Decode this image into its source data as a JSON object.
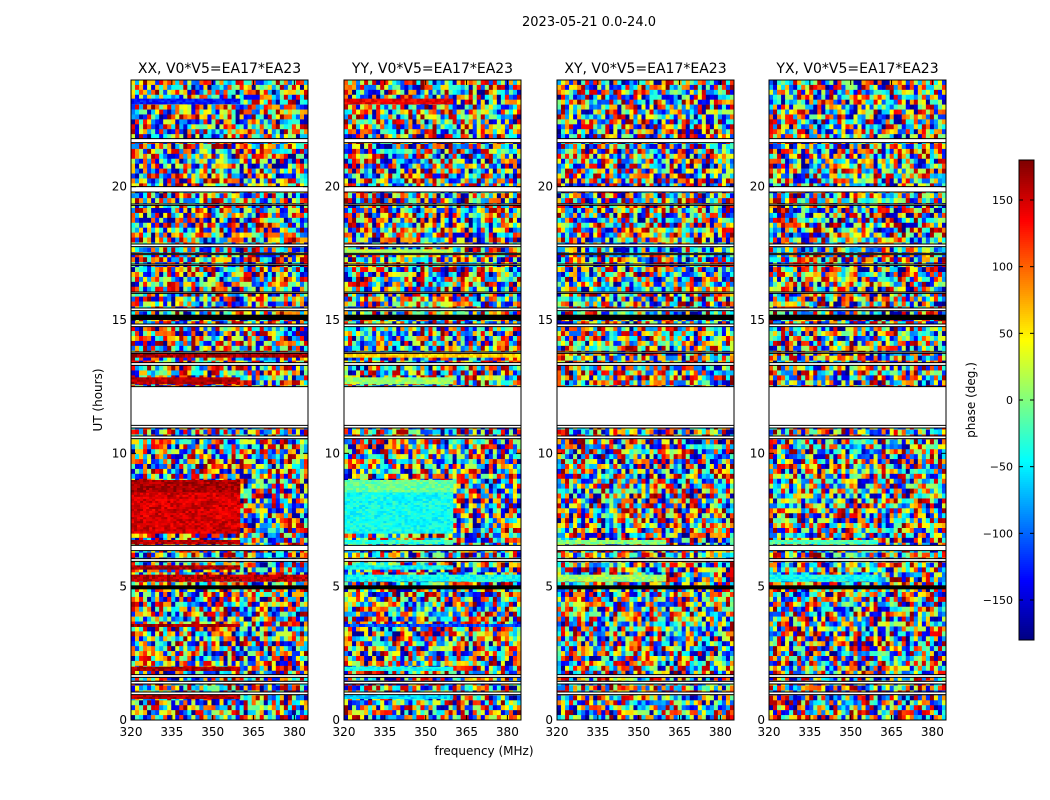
{
  "figure": {
    "suptitle": "2023-05-21 0.0-24.0",
    "xlabel": "frequency (MHz)",
    "ylabel": "UT (hours)"
  },
  "colorbar": {
    "label": "phase (deg.)",
    "range": [
      -180,
      180
    ],
    "ticks": [
      150,
      100,
      50,
      0,
      -50,
      -100,
      -150
    ],
    "tick_labels": [
      "150",
      "100",
      "50",
      "0",
      "−50",
      "−100",
      "−150"
    ],
    "colormap": "jet"
  },
  "chart_data": {
    "type": "heatmap",
    "panels": [
      {
        "title": "XX, V0*V5=EA17*EA23",
        "key": "xx"
      },
      {
        "title": "YY, V0*V5=EA17*EA23",
        "key": "yy"
      },
      {
        "title": "XY, V0*V5=EA17*EA23",
        "key": "xy"
      },
      {
        "title": "YX, V0*V5=EA17*EA23",
        "key": "yx"
      }
    ],
    "x": {
      "label": "frequency (MHz)",
      "range": [
        320,
        385
      ],
      "ticks": [
        320,
        335,
        350,
        365,
        380
      ],
      "tick_labels": [
        "320",
        "335",
        "350",
        "365",
        "380"
      ]
    },
    "y": {
      "label": "UT (hours)",
      "range": [
        0,
        24
      ],
      "ticks": [
        0,
        5,
        10,
        15,
        20
      ],
      "tick_labels": [
        "0",
        "5",
        "10",
        "15",
        "20"
      ]
    },
    "value_label": "phase (deg.)",
    "value_range": [
      -180,
      180
    ],
    "flagged_blank_ut_ranges": [
      [
        12.5,
        11.0
      ],
      [
        0.95,
        1.05
      ],
      [
        1.35,
        1.45
      ],
      [
        1.6,
        1.7
      ],
      [
        5.95,
        6.05
      ],
      [
        6.35,
        6.55
      ],
      [
        10.55,
        10.65
      ],
      [
        10.95,
        11.05
      ],
      [
        13.3,
        13.4
      ],
      [
        13.75,
        13.8
      ],
      [
        14.75,
        14.85
      ],
      [
        15.35,
        15.45
      ],
      [
        16.0,
        16.05
      ],
      [
        17.05,
        17.1
      ],
      [
        17.45,
        17.5
      ],
      [
        17.75,
        17.85
      ],
      [
        19.3,
        19.35
      ],
      [
        19.8,
        20.0
      ],
      [
        21.65,
        21.8
      ]
    ],
    "panel_features": [
      {
        "panel": "xx",
        "ut": [
          0.8,
          1.0
        ],
        "phase": 160,
        "freq_max": 360
      },
      {
        "panel": "xx",
        "ut": [
          1.85,
          2.0
        ],
        "phase": 165,
        "freq_max": 360
      },
      {
        "panel": "xx",
        "ut": [
          3.5,
          3.6
        ],
        "phase": 170,
        "freq_max": 360
      },
      {
        "panel": "xx",
        "ut": [
          5.2,
          5.45
        ],
        "phase": 160,
        "freq_max": 385
      },
      {
        "panel": "xx",
        "ut": [
          5.65,
          5.8
        ],
        "phase": 165,
        "freq_max": 360
      },
      {
        "panel": "xx",
        "ut": [
          6.6,
          6.75
        ],
        "phase": 160,
        "freq_max": 360
      },
      {
        "panel": "xx",
        "ut": [
          7.0,
          8.9
        ],
        "phase": 150,
        "freq_max": 360
      },
      {
        "panel": "xx",
        "ut": [
          8.55,
          9.0
        ],
        "phase": 165,
        "freq_max": 360
      },
      {
        "panel": "xx",
        "ut": [
          12.6,
          12.85
        ],
        "phase": 160,
        "freq_max": 360
      },
      {
        "panel": "xx",
        "ut": [
          13.6,
          13.75
        ],
        "phase": 165,
        "freq_max": 385
      },
      {
        "panel": "xx",
        "ut": [
          23.1,
          23.3
        ],
        "phase": -130,
        "freq_max": 360
      },
      {
        "panel": "yy",
        "ut": [
          0.8,
          1.0
        ],
        "phase": -60,
        "freq_max": 360
      },
      {
        "panel": "yy",
        "ut": [
          1.85,
          2.0
        ],
        "phase": -40,
        "freq_max": 360
      },
      {
        "panel": "yy",
        "ut": [
          3.5,
          3.6
        ],
        "phase": -110,
        "freq_max": 385
      },
      {
        "panel": "yy",
        "ut": [
          5.2,
          5.45
        ],
        "phase": -40,
        "freq_max": 385
      },
      {
        "panel": "yy",
        "ut": [
          5.65,
          5.8
        ],
        "phase": -45,
        "freq_max": 360
      },
      {
        "panel": "yy",
        "ut": [
          6.6,
          6.75
        ],
        "phase": -30,
        "freq_max": 360
      },
      {
        "panel": "yy",
        "ut": [
          7.0,
          8.9
        ],
        "phase": -40,
        "freq_max": 360
      },
      {
        "panel": "yy",
        "ut": [
          8.55,
          9.0
        ],
        "phase": -10,
        "freq_max": 360
      },
      {
        "panel": "yy",
        "ut": [
          12.6,
          12.85
        ],
        "phase": 10,
        "freq_max": 360
      },
      {
        "panel": "yy",
        "ut": [
          13.6,
          13.75
        ],
        "phase": 60,
        "freq_max": 385
      },
      {
        "panel": "yy",
        "ut": [
          17.5,
          17.65
        ],
        "phase": 20,
        "freq_max": 360
      },
      {
        "panel": "yy",
        "ut": [
          23.1,
          23.3
        ],
        "phase": 140,
        "freq_max": 360
      },
      {
        "panel": "xy",
        "ut": [
          5.2,
          5.45
        ],
        "phase": 10,
        "freq_max": 360
      },
      {
        "panel": "xy",
        "ut": [
          6.6,
          6.75
        ],
        "phase": 0,
        "freq_max": 360
      },
      {
        "panel": "yx",
        "ut": [
          5.2,
          5.45
        ],
        "phase": -40,
        "freq_max": 360
      },
      {
        "panel": "yx",
        "ut": [
          6.6,
          6.75
        ],
        "phase": -20,
        "freq_max": 360
      }
    ],
    "dark_band_ut": [
      [
        4.9,
        5.05
      ],
      [
        15.0,
        15.2
      ]
    ]
  }
}
